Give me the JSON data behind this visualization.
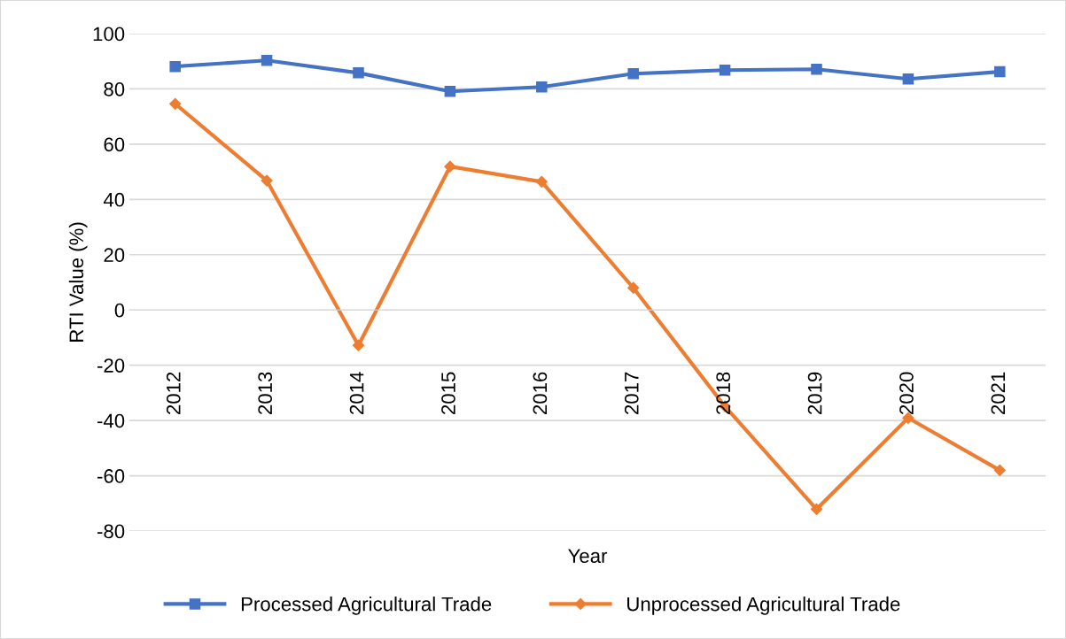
{
  "chart_data": {
    "type": "line",
    "xlabel": "Year",
    "ylabel": "RTI Value (%)",
    "categories": [
      "2012",
      "2013",
      "2014",
      "2015",
      "2016",
      "2017",
      "2018",
      "2019",
      "2020",
      "2021"
    ],
    "series": [
      {
        "name": "Processed Agricultural Trade",
        "color": "#4472c4",
        "marker": "square",
        "values": [
          88.1,
          90.3,
          85.8,
          79.1,
          80.7,
          85.5,
          86.8,
          87.1,
          83.6,
          86.2
        ]
      },
      {
        "name": "Unprocessed Agricultural Trade",
        "color": "#ed7d31",
        "marker": "diamond",
        "values": [
          74.6,
          46.8,
          -12.8,
          51.9,
          46.4,
          8.0,
          -34.9,
          -72.1,
          -39.1,
          -58.0
        ]
      }
    ],
    "ylim": [
      -80,
      100
    ],
    "yticks": [
      -80,
      -60,
      -40,
      -20,
      0,
      20,
      40,
      60,
      80,
      100
    ],
    "grid": "y",
    "legend": "bottom",
    "line_style": "solid"
  }
}
